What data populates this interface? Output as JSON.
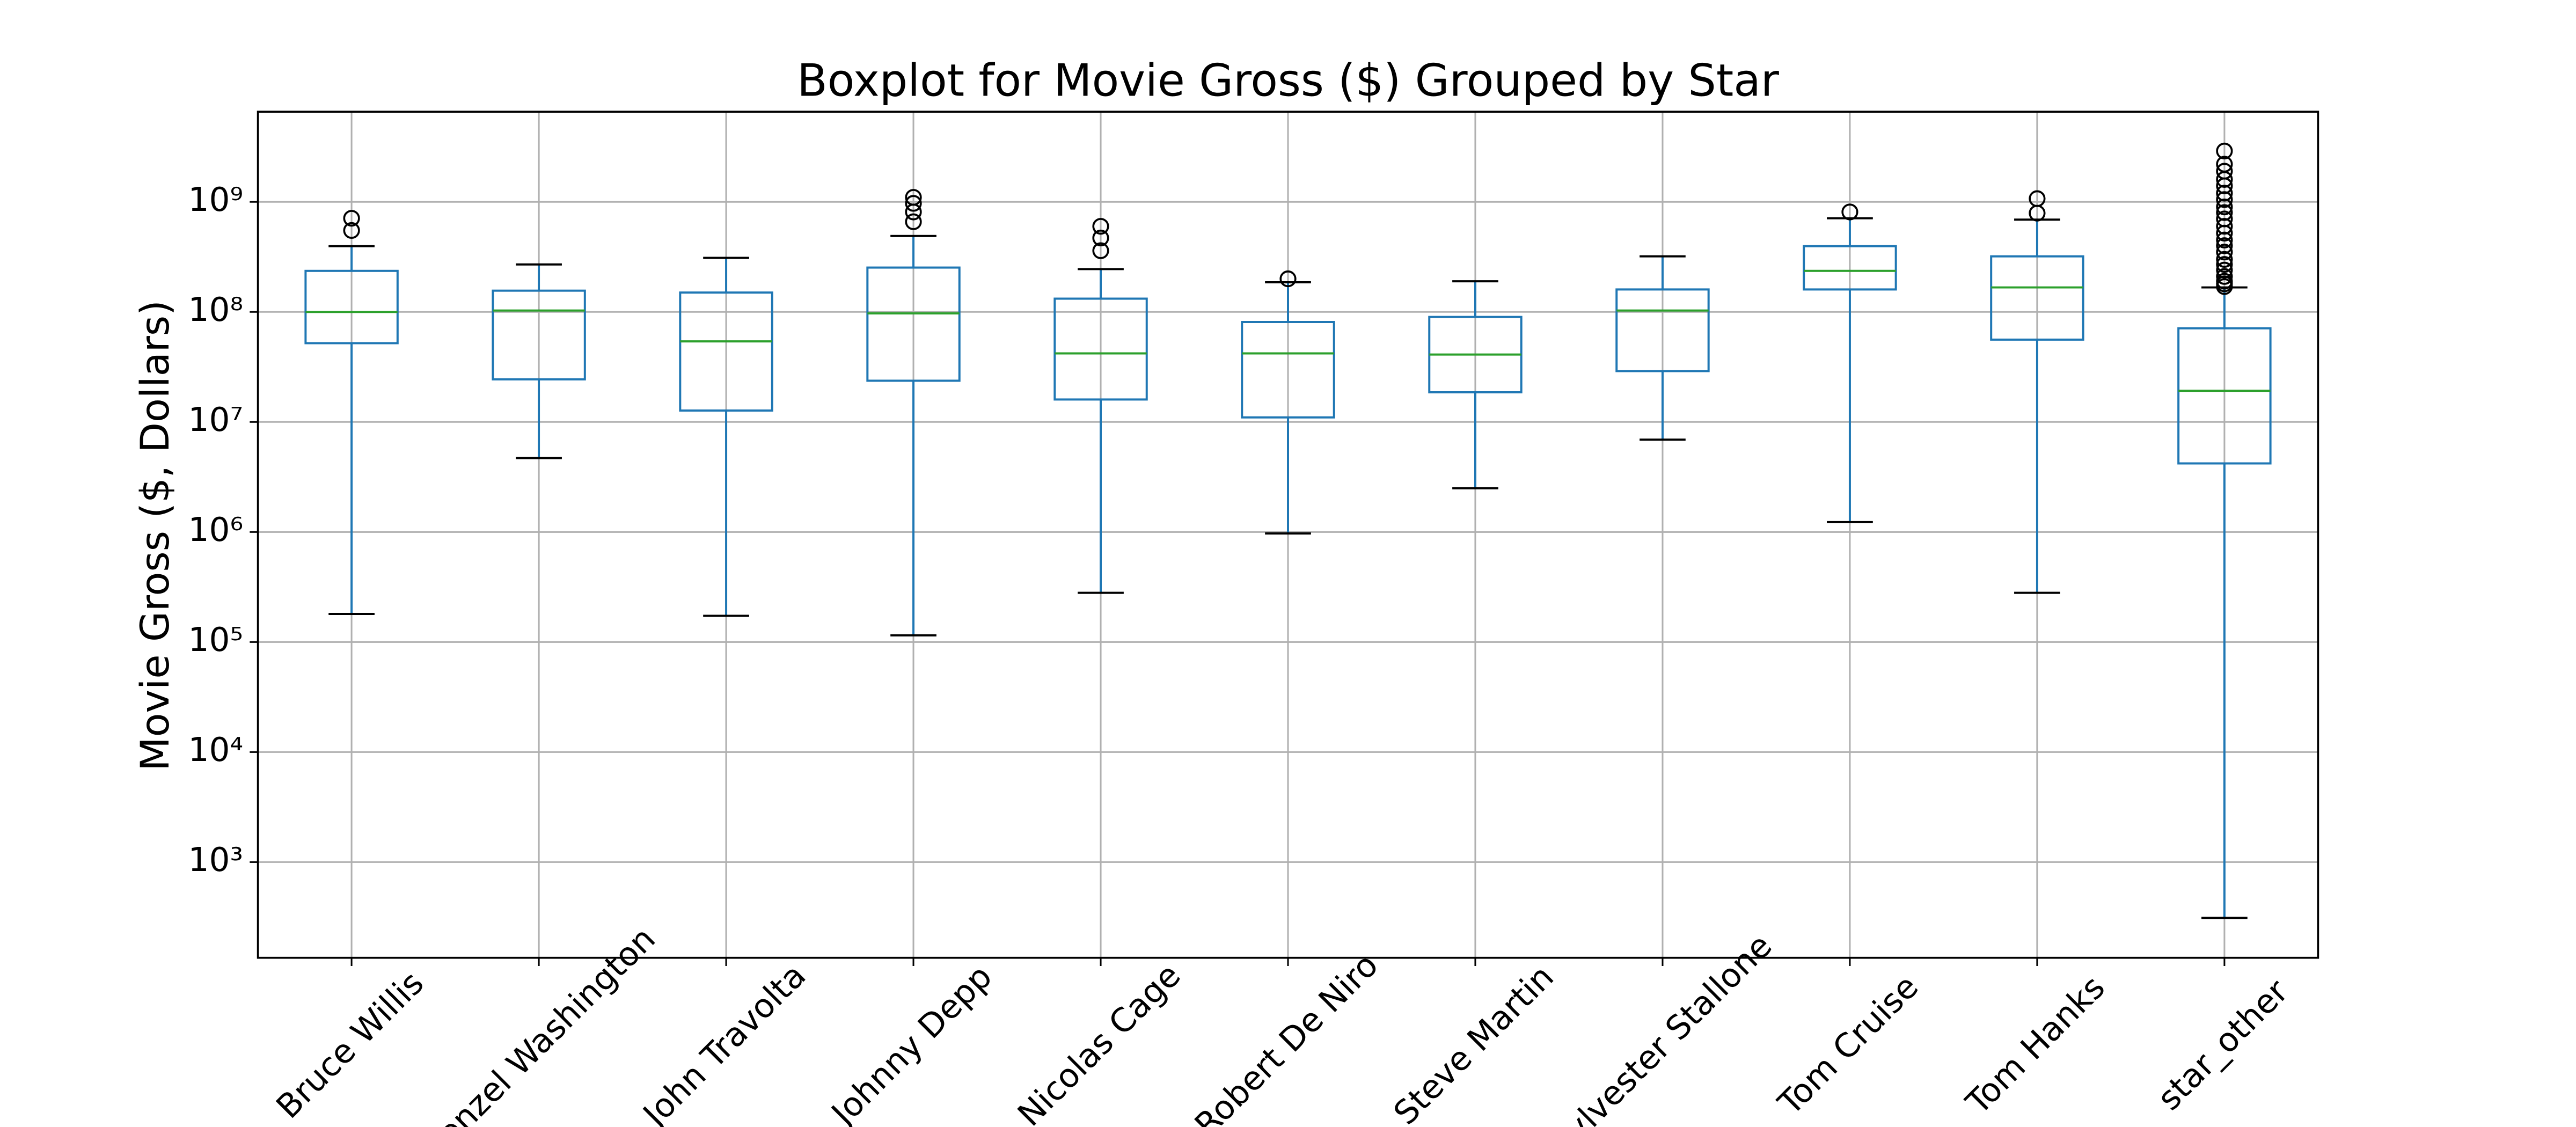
{
  "chart_data": {
    "type": "box",
    "title": "Boxplot for Movie Gross ($) Grouped by Star",
    "y_label": "Movie Gross ($, Dollars)",
    "categories": [
      "Bruce Willis",
      "Denzel Washington",
      "John Travolta",
      "Johnny Depp",
      "Nicolas Cage",
      "Robert De Niro",
      "Steve Martin",
      "Sylvester Stallone",
      "Tom Cruise",
      "Tom Hanks",
      "star_other"
    ],
    "boxes": [
      {
        "whislo": 180000,
        "q1": 52000000,
        "med": 100000000,
        "q3": 236000000,
        "whishi": 396000000,
        "fliers": [
          710000000,
          550000000
        ]
      },
      {
        "whislo": 4700000,
        "q1": 24400000,
        "med": 103000000,
        "q3": 156000000,
        "whishi": 270000000,
        "fliers": []
      },
      {
        "whislo": 173000,
        "q1": 12700000,
        "med": 54000000,
        "q3": 150000000,
        "whishi": 310000000,
        "fliers": []
      },
      {
        "whislo": 115000,
        "q1": 23700000,
        "med": 97000000,
        "q3": 253000000,
        "whishi": 490000000,
        "fliers": [
          1100000000,
          970000000,
          810000000,
          660000000
        ]
      },
      {
        "whislo": 280000,
        "q1": 16000000,
        "med": 42000000,
        "q3": 132000000,
        "whishi": 245000000,
        "fliers": [
          600000000,
          470000000,
          360000000
        ]
      },
      {
        "whislo": 970000,
        "q1": 11000000,
        "med": 42000000,
        "q3": 81000000,
        "whishi": 186000000,
        "fliers": [
          200000000
        ]
      },
      {
        "whislo": 2500000,
        "q1": 18600000,
        "med": 41000000,
        "q3": 90000000,
        "whishi": 190000000,
        "fliers": []
      },
      {
        "whislo": 6900000,
        "q1": 29000000,
        "med": 103000000,
        "q3": 160000000,
        "whishi": 320000000,
        "fliers": []
      },
      {
        "whislo": 1230000,
        "q1": 160000000,
        "med": 236000000,
        "q3": 396000000,
        "whishi": 710000000,
        "fliers": [
          810000000
        ]
      },
      {
        "whislo": 280000,
        "q1": 56000000,
        "med": 167000000,
        "q3": 320000000,
        "whishi": 690000000,
        "fliers": [
          1070000000,
          790000000
        ]
      },
      {
        "whislo": 311,
        "q1": 4200000,
        "med": 19200000,
        "q3": 71000000,
        "whishi": 167000000,
        "fliers": [
          2900000000,
          2200000000,
          1900000000,
          1600000000,
          1400000000,
          1200000000,
          1050000000,
          900000000,
          800000000,
          700000000,
          600000000,
          520000000,
          450000000,
          400000000,
          350000000,
          300000000,
          270000000,
          240000000,
          210000000,
          190000000,
          180000000,
          170000000
        ]
      }
    ],
    "box_color": "#1f77b4",
    "median_color": "#2ca02c",
    "whisker_color": "#1f77b4",
    "cap_color": "#000000",
    "flier_color": "#000000",
    "y_scale": "log",
    "ylim": [
      135,
      6600000000
    ],
    "yticks": [
      {
        "value": 1000,
        "label": "10³"
      },
      {
        "value": 10000,
        "label": "10⁴"
      },
      {
        "value": 100000,
        "label": "10⁵"
      },
      {
        "value": 1000000,
        "label": "10⁶"
      },
      {
        "value": 10000000,
        "label": "10⁷"
      },
      {
        "value": 100000000,
        "label": "10⁸"
      },
      {
        "value": 1000000000,
        "label": "10⁹"
      }
    ],
    "grid": true
  }
}
